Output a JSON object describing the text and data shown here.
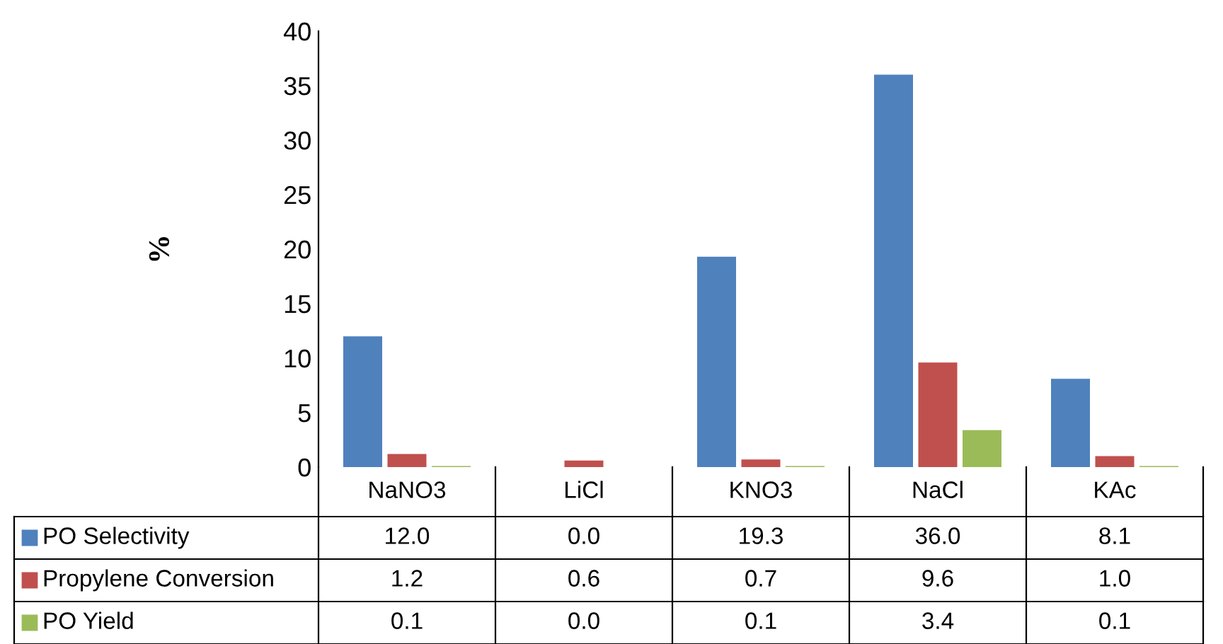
{
  "chart_data": {
    "type": "bar",
    "ylabel": "%",
    "categories": [
      "NaNO3",
      "LiCl",
      "KNO3",
      "NaCl",
      "KAc"
    ],
    "series": [
      {
        "name": "PO Selectivity",
        "color": "#4f81bd",
        "values": [
          12.0,
          0.0,
          19.3,
          36.0,
          8.1
        ],
        "value_labels": [
          "12.0",
          "0.0",
          "19.3",
          "36.0",
          "8.1"
        ]
      },
      {
        "name": "Propylene Conversion",
        "color": "#c0504d",
        "values": [
          1.2,
          0.6,
          0.7,
          9.6,
          1.0
        ],
        "value_labels": [
          "1.2",
          "0.6",
          "0.7",
          "9.6",
          "1.0"
        ]
      },
      {
        "name": "PO Yield",
        "color": "#9bbb59",
        "values": [
          0.1,
          0.0,
          0.1,
          3.4,
          0.1
        ],
        "value_labels": [
          "0.1",
          "0.0",
          "0.1",
          "3.4",
          "0.1"
        ]
      }
    ],
    "ylim": [
      0,
      40
    ],
    "yticks": [
      0,
      5,
      10,
      15,
      20,
      25,
      30,
      35,
      40
    ],
    "legend": "bottom left",
    "grid": false
  }
}
